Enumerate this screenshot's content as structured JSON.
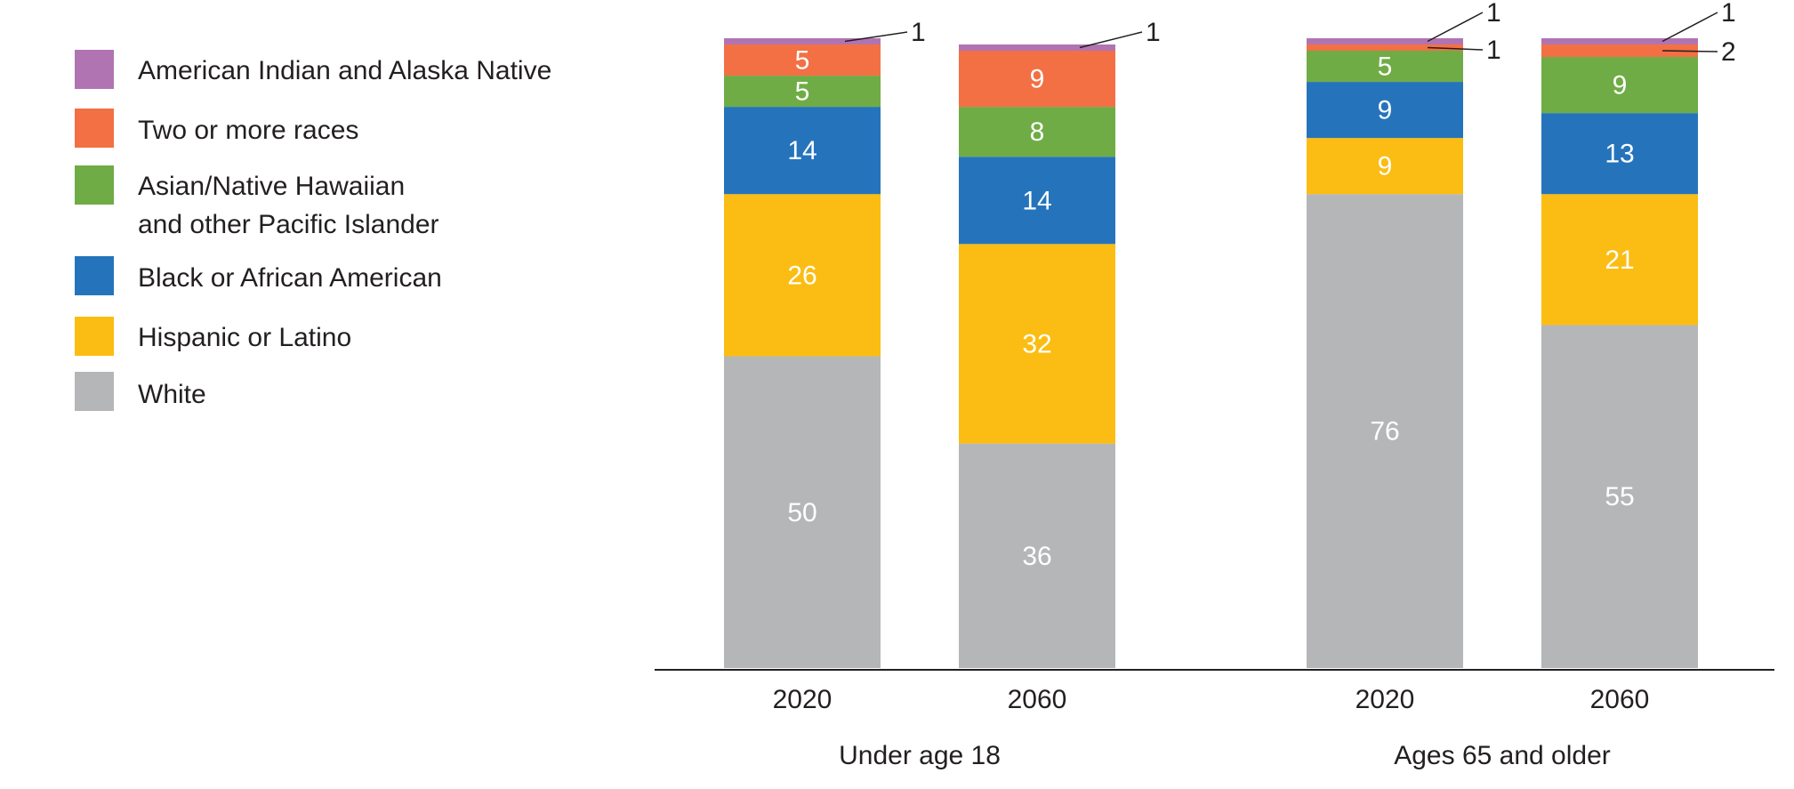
{
  "chart_data": {
    "type": "bar",
    "stacked": true,
    "unit": "percent",
    "ylim": [
      0,
      100
    ],
    "grid": false,
    "legend_position": "left",
    "groups": [
      {
        "label": "Under age 18",
        "categories": [
          "2020",
          "2060"
        ]
      },
      {
        "label": "Ages 65 and older",
        "categories": [
          "2020",
          "2060"
        ]
      }
    ],
    "bars": [
      {
        "id": "u18-2020",
        "group": "Under age 18",
        "category": "2020"
      },
      {
        "id": "u18-2060",
        "group": "Under age 18",
        "category": "2060"
      },
      {
        "id": "o65-2020",
        "group": "Ages 65 and older",
        "category": "2020"
      },
      {
        "id": "o65-2060",
        "group": "Ages 65 and older",
        "category": "2060"
      }
    ],
    "series": [
      {
        "name": "White",
        "color": "#b5b6b8",
        "values": [
          50,
          36,
          76,
          55
        ],
        "labels": [
          "50",
          "36",
          "76",
          "55"
        ]
      },
      {
        "name": "Hispanic or Latino",
        "color": "#fbbd13",
        "values": [
          26,
          32,
          9,
          21
        ],
        "labels": [
          "26",
          "32",
          "9",
          "21"
        ]
      },
      {
        "name": "Black or African American",
        "color": "#2574bb",
        "values": [
          14,
          14,
          9,
          13
        ],
        "labels": [
          "14",
          "14",
          "9",
          "13"
        ]
      },
      {
        "name": "Asian/Native Hawaiian and other Pacific Islander",
        "legend_lines": [
          "Asian/Native Hawaiian",
          "and other Pacific Islander"
        ],
        "color": "#6fac45",
        "values": [
          5,
          8,
          5,
          9
        ],
        "labels": [
          "5",
          "8",
          "5",
          "9"
        ]
      },
      {
        "name": "Two or more races",
        "color": "#f37044",
        "values": [
          5,
          9,
          1,
          2
        ],
        "labels": [
          "5",
          "9",
          "1",
          "2"
        ],
        "callout": [
          false,
          false,
          true,
          true
        ]
      },
      {
        "name": "American Indian and Alaska Native",
        "color": "#b074b2",
        "values": [
          1,
          1,
          1,
          1
        ],
        "labels": [
          "1",
          "1",
          "1",
          "1"
        ],
        "callout": [
          true,
          true,
          true,
          true
        ]
      }
    ],
    "legend_order": [
      5,
      4,
      3,
      2,
      1,
      0
    ]
  }
}
